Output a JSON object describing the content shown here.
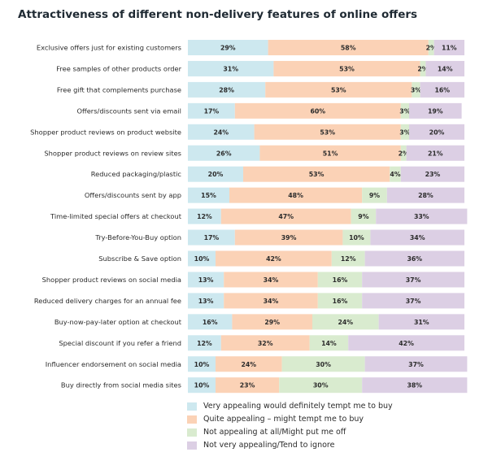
{
  "chart_data": {
    "type": "bar",
    "orientation": "horizontal",
    "stacked": true,
    "title": "Attractiveness of different non-delivery features of online offers",
    "categories": [
      "Exclusive offers just for existing customers",
      "Free samples of other products order",
      "Free gift that complements purchase",
      "Offers/discounts sent via email",
      "Shopper product reviews on product website",
      "Shopper product reviews on review sites",
      "Reduced packaging/plastic",
      "Offers/discounts sent by app",
      "Time-limited special offers at checkout",
      "Try-Before-You-Buy option",
      "Subscribe & Save option",
      "Shopper product reviews on social media",
      "Reduced delivery charges for an annual fee",
      "Buy-now-pay-later option at checkout",
      "Special discount if you refer a friend",
      "Influencer endorsement on social media",
      "Buy directly from social media sites"
    ],
    "series": [
      {
        "name": "Very appealing would definitely tempt me to buy",
        "color": "#cde8ef",
        "values": [
          29,
          31,
          28,
          17,
          24,
          26,
          20,
          15,
          12,
          17,
          10,
          13,
          13,
          16,
          12,
          10,
          10
        ]
      },
      {
        "name": "Quite appealing – might tempt me to buy",
        "color": "#fbd2b6",
        "values": [
          58,
          53,
          53,
          60,
          53,
          51,
          53,
          48,
          47,
          39,
          42,
          34,
          34,
          29,
          32,
          24,
          23
        ]
      },
      {
        "name": "Not appealing at all/Might put me off",
        "color": "#d9ebcf",
        "values": [
          2,
          2,
          3,
          3,
          3,
          2,
          4,
          9,
          9,
          10,
          12,
          16,
          16,
          24,
          14,
          30,
          30
        ]
      },
      {
        "name": "Not very appealing/Tend to ignore",
        "color": "#dccfe4",
        "values": [
          11,
          14,
          16,
          19,
          20,
          21,
          23,
          28,
          33,
          34,
          36,
          37,
          37,
          31,
          42,
          37,
          38
        ]
      }
    ],
    "value_suffix": "%",
    "xlim": [
      0,
      100
    ],
    "grid": false,
    "legend_position": "bottom"
  }
}
